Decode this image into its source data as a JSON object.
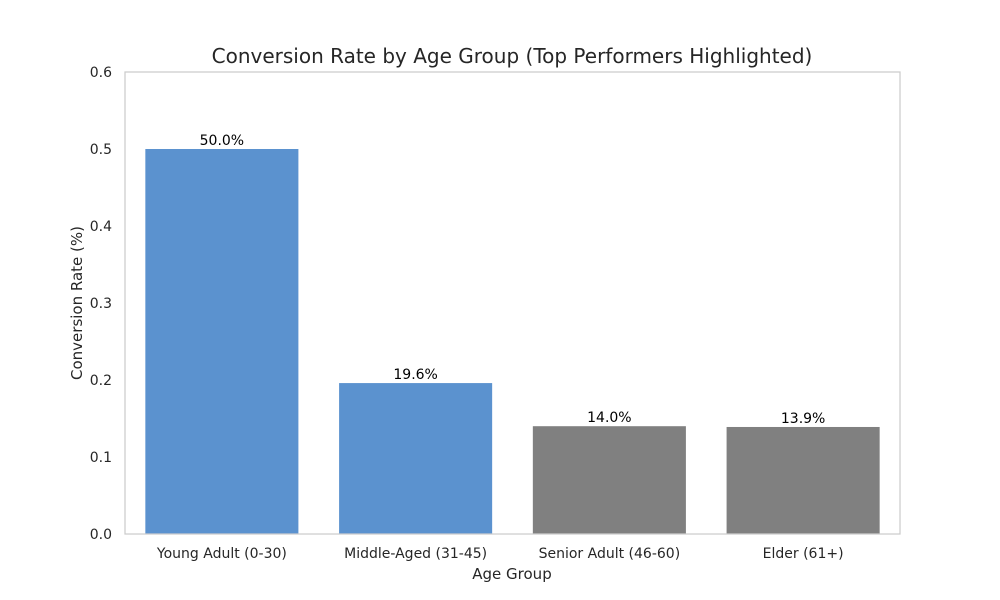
{
  "chart_data": {
    "type": "bar",
    "title": "Conversion Rate by Age Group (Top Performers Highlighted)",
    "xlabel": "Age Group",
    "ylabel": "Conversion Rate (%)",
    "categories": [
      "Young Adult (0-30)",
      "Middle-Aged (31-45)",
      "Senior Adult (46-60)",
      "Elder (61+)"
    ],
    "values": [
      0.5,
      0.196,
      0.14,
      0.139
    ],
    "data_labels": [
      "50.0%",
      "19.6%",
      "14.0%",
      "13.9%"
    ],
    "highlighted": [
      true,
      true,
      false,
      false
    ],
    "ylim": [
      0,
      0.6
    ],
    "yticks": [
      0.0,
      0.1,
      0.2,
      0.3,
      0.4,
      0.5,
      0.6
    ],
    "ytick_labels": [
      "0.0",
      "0.1",
      "0.2",
      "0.3",
      "0.4",
      "0.5",
      "0.6"
    ],
    "grid": false,
    "colors": {
      "highlight": "#5b92cf",
      "normal": "#808080",
      "frame": "#cccccc"
    }
  }
}
